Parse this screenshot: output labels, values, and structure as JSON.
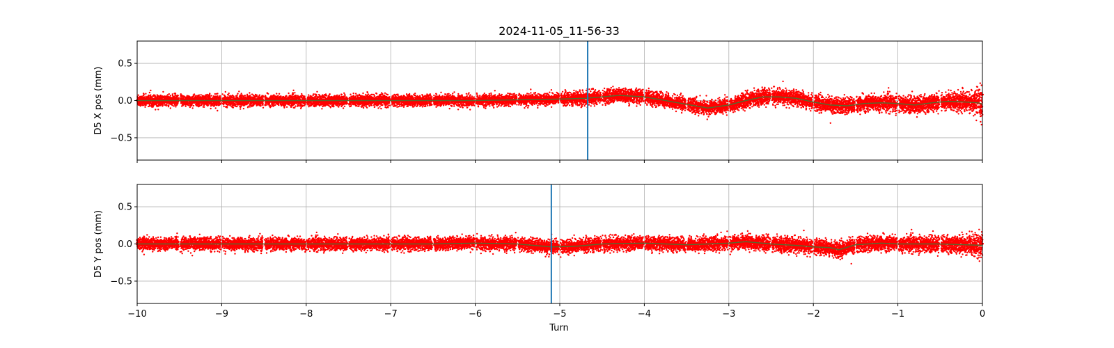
{
  "chart_data": [
    {
      "type": "scatter",
      "title": "2024-11-05_11-56-33",
      "xlabel": "",
      "ylabel": "D5 X pos (mm)",
      "xlim": [
        -10,
        0
      ],
      "ylim": [
        -0.8,
        0.8
      ],
      "x_ticks": [
        -10,
        -9,
        -8,
        -7,
        -6,
        -5,
        -4,
        -3,
        -2,
        -1,
        0
      ],
      "y_ticks": [
        0.5,
        0.0,
        -0.5
      ],
      "y_tick_labels": [
        "0.5",
        "0.0",
        "−0.5"
      ],
      "grid": true,
      "marker_color": "#ff0000",
      "trend_color": "#556b2f",
      "vline_color": "#1f77b4",
      "vline_x": -4.67,
      "turn_gaps": [
        -9.5,
        -9.0,
        -8.5,
        -8.0,
        -7.5,
        -7.0,
        -6.5,
        -6.0,
        -5.5,
        -5.0,
        -4.5,
        -4.0,
        -3.5,
        -3.0,
        -2.5,
        -2.0,
        -1.5,
        -1.0,
        -0.5
      ],
      "trend": {
        "x": [
          -10,
          -9.5,
          -9,
          -8.5,
          -8,
          -7.5,
          -7,
          -6.5,
          -6,
          -5.5,
          -5,
          -4.7,
          -4.5,
          -4.3,
          -4.0,
          -3.8,
          -3.6,
          -3.4,
          -3.25,
          -3.0,
          -2.8,
          -2.6,
          -2.4,
          -2.2,
          -2.0,
          -1.8,
          -1.6,
          -1.4,
          -1.2,
          -1.0,
          -0.8,
          -0.6,
          -0.4,
          -0.2,
          -0.05,
          0
        ],
        "y": [
          0.0,
          0.0,
          0.0,
          0.0,
          0.0,
          0.0,
          0.0,
          0.0,
          0.0,
          0.01,
          0.02,
          0.03,
          0.05,
          0.07,
          0.05,
          0.01,
          -0.03,
          -0.07,
          -0.1,
          -0.06,
          0.0,
          0.05,
          0.05,
          0.03,
          -0.02,
          -0.06,
          -0.07,
          -0.04,
          -0.03,
          -0.04,
          -0.06,
          -0.03,
          -0.01,
          -0.02,
          -0.03,
          -0.05
        ]
      },
      "noise_envelope": {
        "x": [
          -10,
          -5.2,
          -4.7,
          -4.0,
          -3.0,
          -2.8,
          -2.0,
          -1.0,
          -0.5,
          -0.1,
          0
        ],
        "sd": [
          0.04,
          0.04,
          0.05,
          0.05,
          0.05,
          0.055,
          0.055,
          0.06,
          0.06,
          0.07,
          0.12
        ]
      }
    },
    {
      "type": "scatter",
      "title": "",
      "xlabel": "Turn",
      "ylabel": "D5 Y pos (mm)",
      "xlim": [
        -10,
        0
      ],
      "ylim": [
        -0.8,
        0.8
      ],
      "x_ticks": [
        -10,
        -9,
        -8,
        -7,
        -6,
        -5,
        -4,
        -3,
        -2,
        -1,
        0
      ],
      "x_tick_labels": [
        "−10",
        "−9",
        "−8",
        "−7",
        "−6",
        "−5",
        "−4",
        "−3",
        "−2",
        "−1",
        "0"
      ],
      "y_ticks": [
        0.5,
        0.0,
        -0.5
      ],
      "y_tick_labels": [
        "0.5",
        "0.0",
        "−0.5"
      ],
      "grid": true,
      "marker_color": "#ff0000",
      "trend_color": "#556b2f",
      "vline_color": "#1f77b4",
      "vline_x": -5.1,
      "turn_gaps": [
        -9.5,
        -9.0,
        -8.5,
        -8.0,
        -7.5,
        -7.0,
        -6.5,
        -6.0,
        -5.5,
        -5.0,
        -4.5,
        -4.0,
        -3.5,
        -3.0,
        -2.5,
        -2.0,
        -1.5,
        -1.0,
        -0.5
      ],
      "trend": {
        "x": [
          -10,
          -9,
          -8,
          -7,
          -6.5,
          -6,
          -5.5,
          -5.1,
          -4.8,
          -4.5,
          -4.0,
          -3.5,
          -3.0,
          -2.8,
          -2.5,
          -2.2,
          -2.0,
          -1.8,
          -1.7,
          -1.5,
          -1.2,
          -1.0,
          -0.5,
          -0.2,
          0
        ],
        "y": [
          0.0,
          0.0,
          0.0,
          0.0,
          0.0,
          0.01,
          0.0,
          -0.04,
          -0.03,
          0.0,
          0.01,
          -0.01,
          0.01,
          0.03,
          0.0,
          -0.02,
          -0.04,
          -0.05,
          -0.08,
          -0.01,
          0.01,
          0.0,
          0.0,
          -0.01,
          -0.02
        ]
      },
      "noise_envelope": {
        "x": [
          -10,
          -6,
          -5,
          -4,
          -3,
          -2,
          -1,
          -0.3,
          0
        ],
        "sd": [
          0.045,
          0.045,
          0.05,
          0.05,
          0.05,
          0.055,
          0.055,
          0.06,
          0.09
        ]
      }
    }
  ]
}
